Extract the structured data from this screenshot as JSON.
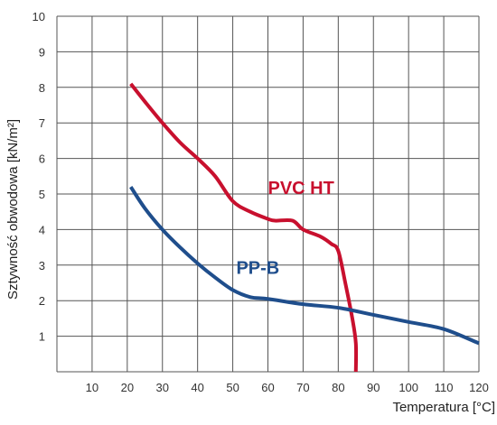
{
  "chart_data": {
    "type": "line",
    "title": "",
    "xlabel": "Temperatura [°C]",
    "ylabel": "Sztywność obwodowa [kN/m²]",
    "xlim": [
      0,
      120
    ],
    "ylim": [
      0,
      10
    ],
    "x_ticks": [
      "10",
      "20",
      "30",
      "40",
      "50",
      "60",
      "70",
      "80",
      "90",
      "100",
      "110",
      "120"
    ],
    "y_ticks": [
      "1",
      "2",
      "3",
      "4",
      "5",
      "6",
      "7",
      "8",
      "9",
      "10"
    ],
    "grid": true,
    "series": [
      {
        "name": "PVC HT",
        "color": "#c8102e",
        "label_at": [
          60,
          5.0
        ],
        "points": [
          [
            21,
            8.1
          ],
          [
            25,
            7.6
          ],
          [
            30,
            7.0
          ],
          [
            35,
            6.45
          ],
          [
            40,
            6.0
          ],
          [
            45,
            5.5
          ],
          [
            50,
            4.8
          ],
          [
            55,
            4.5
          ],
          [
            60,
            4.3
          ],
          [
            62,
            4.25
          ],
          [
            67,
            4.25
          ],
          [
            70,
            4.0
          ],
          [
            75,
            3.8
          ],
          [
            78,
            3.6
          ],
          [
            80,
            3.4
          ],
          [
            82,
            2.5
          ],
          [
            84,
            1.5
          ],
          [
            85,
            0.8
          ],
          [
            85,
            0
          ]
        ]
      },
      {
        "name": "PP-B",
        "color": "#1f4e8c",
        "label_at": [
          51,
          2.75
        ],
        "points": [
          [
            21,
            5.2
          ],
          [
            25,
            4.6
          ],
          [
            30,
            4.0
          ],
          [
            35,
            3.5
          ],
          [
            40,
            3.05
          ],
          [
            45,
            2.65
          ],
          [
            50,
            2.3
          ],
          [
            55,
            2.1
          ],
          [
            60,
            2.05
          ],
          [
            70,
            1.9
          ],
          [
            80,
            1.8
          ],
          [
            90,
            1.6
          ],
          [
            100,
            1.4
          ],
          [
            110,
            1.2
          ],
          [
            120,
            0.8
          ]
        ]
      }
    ]
  }
}
